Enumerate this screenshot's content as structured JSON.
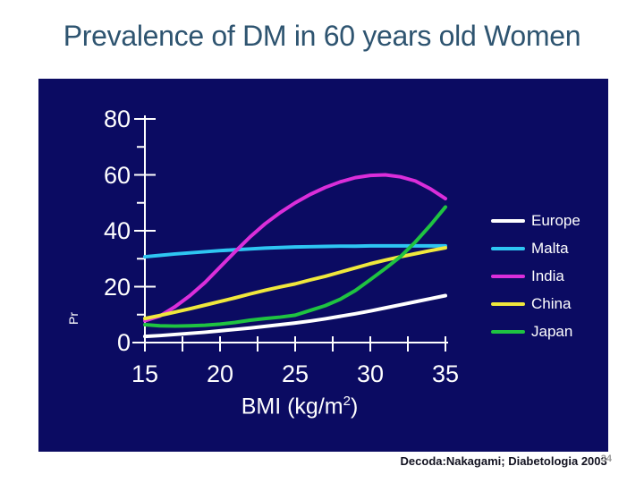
{
  "slide": {
    "title": "Prevalence of DM in 60 years old Women",
    "footer": {
      "citation": "Decoda:Nakagami; Diabetologia 2003",
      "page_number": "34"
    }
  },
  "chart_data": {
    "type": "line",
    "title": "",
    "ylabel": "Pr",
    "xlabel": {
      "prefix": "BMI (kg/m",
      "sup": "2",
      "suffix": ")"
    },
    "xlim": [
      15,
      35
    ],
    "ylim": [
      0,
      80
    ],
    "x_ticks": [
      15,
      20,
      25,
      30,
      35
    ],
    "x_minor_ticks": [
      17.5,
      22.5,
      27.5,
      32.5
    ],
    "y_ticks": [
      0,
      20,
      40,
      60,
      80
    ],
    "y_minor_ticks": [
      10,
      30,
      50,
      70
    ],
    "grid": false,
    "legend_position": "right",
    "plot_background": "#0b0b62",
    "axis_color": "#ffffff",
    "x": [
      15,
      16,
      17,
      18,
      19,
      20,
      21,
      22,
      23,
      24,
      25,
      26,
      27,
      28,
      29,
      30,
      31,
      32,
      33,
      34,
      35
    ],
    "series": [
      {
        "name": "Europe",
        "color": "#ffffff",
        "values": [
          2.2,
          2.5,
          2.9,
          3.3,
          3.7,
          4.2,
          4.7,
          5.2,
          5.8,
          6.4,
          7.0,
          7.7,
          8.5,
          9.4,
          10.3,
          11.3,
          12.4,
          13.5,
          14.6,
          15.7,
          16.8
        ]
      },
      {
        "name": "Malta",
        "color": "#2ec6f2",
        "values": [
          30.7,
          31.2,
          31.7,
          32.1,
          32.5,
          32.9,
          33.2,
          33.5,
          33.8,
          34.0,
          34.2,
          34.3,
          34.4,
          34.5,
          34.5,
          34.6,
          34.6,
          34.6,
          34.6,
          34.6,
          34.6
        ]
      },
      {
        "name": "India",
        "color": "#da2eda",
        "values": [
          7.8,
          9.5,
          12.8,
          16.8,
          21.5,
          27.0,
          32.5,
          37.8,
          42.5,
          46.5,
          50.0,
          53.0,
          55.5,
          57.5,
          59.0,
          59.8,
          60.0,
          59.3,
          57.8,
          55.0,
          51.5
        ]
      },
      {
        "name": "China",
        "color": "#f0e83c",
        "values": [
          8.6,
          9.7,
          10.9,
          12.1,
          13.4,
          14.7,
          16.0,
          17.4,
          18.7,
          19.9,
          21.0,
          22.4,
          23.7,
          25.2,
          26.7,
          28.2,
          29.5,
          30.7,
          31.8,
          32.9,
          33.9
        ]
      },
      {
        "name": "Japan",
        "color": "#1fc341",
        "values": [
          6.4,
          6.0,
          5.9,
          6.0,
          6.2,
          6.6,
          7.2,
          8.0,
          8.6,
          9.1,
          9.8,
          11.5,
          13.2,
          15.5,
          18.6,
          22.5,
          26.5,
          30.7,
          36.0,
          42.0,
          48.5
        ]
      }
    ]
  }
}
